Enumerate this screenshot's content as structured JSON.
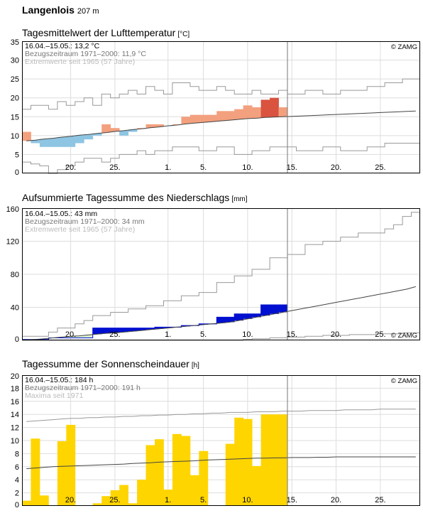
{
  "header": {
    "station": "Langenlois",
    "elevation": "207 m"
  },
  "credit": "© ZAMG",
  "x_ticks": [
    {
      "day": 5,
      "label": "20."
    },
    {
      "day": 10,
      "label": "25."
    },
    {
      "day": 16,
      "label": "1."
    },
    {
      "day": 20,
      "label": "5."
    },
    {
      "day": 25,
      "label": "10."
    },
    {
      "day": 30,
      "label": "15."
    },
    {
      "day": 35,
      "label": "20."
    },
    {
      "day": 40,
      "label": "25."
    }
  ],
  "chart_data": [
    {
      "type": "bar",
      "title": "Tagesmittelwert der Lufttemperatur",
      "unit": "[°C]",
      "info": [
        "16.04.–15.05.: 13,2 °C",
        "Bezugszeitraum 1971–2000: 11,9 °C",
        "Extremwerte seit 1965 (57 Jahre)"
      ],
      "ylim": [
        0,
        35
      ],
      "yticks": [
        0,
        5,
        10,
        15,
        20,
        25,
        30,
        35
      ],
      "days_total": 45,
      "current_day": 30,
      "values": [
        11,
        8,
        7,
        7,
        7,
        7,
        8,
        9,
        10,
        13,
        12,
        10,
        11,
        12,
        13,
        13,
        12.5,
        13,
        15,
        15.5,
        15.5,
        15.5,
        16.5,
        16.5,
        17,
        18,
        17.5,
        19.5,
        20,
        17.5
      ],
      "normal": [
        8.6,
        8.8,
        9.1,
        9.3,
        9.6,
        9.8,
        10.1,
        10.3,
        10.6,
        10.8,
        11.1,
        11.3,
        11.6,
        11.8,
        12.1,
        12.3,
        12.6,
        12.8,
        13.1,
        13.3,
        13.5,
        13.7,
        13.9,
        14.1,
        14.3,
        14.5,
        14.6,
        14.8,
        14.9,
        15.0,
        15.1,
        15.2,
        15.3,
        15.4,
        15.5,
        15.6,
        15.7,
        15.8,
        15.9,
        16.0,
        16.1,
        16.2,
        16.3,
        16.4,
        16.5
      ],
      "max": [
        17,
        18,
        18,
        17,
        19,
        18,
        19,
        20,
        18,
        21,
        20,
        21,
        22,
        21,
        23,
        22,
        21,
        24,
        24,
        23,
        22,
        22,
        23,
        22,
        21,
        21,
        22,
        21,
        21,
        22,
        21,
        21,
        22,
        22,
        21,
        21,
        22,
        22,
        22,
        23,
        23,
        24,
        24,
        25,
        25
      ],
      "min": [
        3,
        2.5,
        2,
        0,
        1,
        2,
        3,
        4,
        4,
        3,
        4,
        5,
        5,
        6,
        5,
        6,
        6,
        7,
        7,
        7,
        6,
        6,
        7,
        7,
        5,
        5,
        6,
        6,
        7,
        7,
        7,
        6,
        6,
        6,
        7,
        7,
        6,
        6,
        6,
        7,
        7,
        8,
        8,
        8,
        8
      ]
    },
    {
      "type": "area",
      "title": "Aufsummierte Tagessumme des Niederschlags",
      "unit": "[mm]",
      "info": [
        "16.04.–15.05.: 43 mm",
        "Bezugszeitraum 1971–2000: 34 mm",
        "Extremwerte seit 1965 (57 Jahre)"
      ],
      "ylim": [
        0,
        160
      ],
      "yticks": [
        0,
        40,
        80,
        120,
        160
      ],
      "days_total": 45,
      "current_day": 30,
      "values": [
        1,
        1,
        1,
        3,
        3,
        3,
        3,
        3,
        15,
        15,
        15,
        15,
        15,
        15,
        15,
        16,
        16,
        16,
        18,
        18,
        20,
        20,
        28,
        28,
        32,
        32,
        32,
        43,
        43,
        43
      ],
      "normal": [
        0.5,
        1,
        2,
        3,
        4,
        5,
        5.5,
        6.5,
        7.5,
        8.5,
        9,
        10,
        11,
        12,
        13,
        14,
        15,
        16,
        17,
        18,
        19,
        20,
        21,
        22,
        24,
        26,
        28,
        30,
        32,
        34,
        36,
        38,
        40,
        42,
        44,
        46,
        48,
        50,
        52,
        54,
        56,
        58,
        60,
        62,
        65
      ],
      "max": [
        5,
        5,
        5,
        10,
        15,
        15,
        20,
        24,
        30,
        30,
        34,
        34,
        38,
        38,
        42,
        42,
        48,
        48,
        54,
        54,
        58,
        58,
        70,
        70,
        78,
        78,
        86,
        86,
        100,
        100,
        104,
        104,
        116,
        116,
        120,
        120,
        125,
        125,
        130,
        130,
        130,
        135,
        140,
        150,
        155
      ],
      "min": [
        0,
        0,
        0,
        0,
        0,
        0,
        0,
        0,
        0,
        0,
        0,
        0,
        0,
        0,
        0,
        0,
        0,
        0,
        0,
        0,
        0,
        0,
        0,
        0,
        0,
        1,
        2,
        2,
        3,
        3,
        4,
        4,
        5,
        5,
        6,
        6,
        6,
        7,
        7,
        7,
        8,
        8,
        8,
        9,
        9
      ]
    },
    {
      "type": "bar",
      "title": "Tagessumme der Sonnenscheindauer",
      "unit": "[h]",
      "info": [
        "16.04.–15.05.: 184 h",
        "Bezugszeitraum 1971–2000: 191 h",
        "Maxima seit 1971"
      ],
      "ylim": [
        0,
        20
      ],
      "yticks": [
        0,
        2,
        4,
        6,
        8,
        10,
        12,
        14,
        16,
        18,
        20
      ],
      "days_total": 45,
      "current_day": 30,
      "values": [
        0.8,
        10.3,
        1.6,
        0,
        9.9,
        12.4,
        0,
        0,
        0.4,
        1.5,
        2.4,
        3.2,
        0.4,
        4,
        9.3,
        10.2,
        2.5,
        11,
        10.7,
        4.7,
        8.4,
        0,
        0,
        9.5,
        13.5,
        13.3,
        6.1,
        14,
        14,
        14
      ],
      "normal": [
        5.7,
        5.8,
        5.9,
        6.0,
        6.05,
        6.1,
        6.15,
        6.2,
        6.25,
        6.3,
        6.35,
        6.4,
        6.5,
        6.55,
        6.6,
        6.7,
        6.75,
        6.8,
        6.85,
        6.9,
        7.0,
        7.05,
        7.1,
        7.15,
        7.2,
        7.25,
        7.3,
        7.3,
        7.35,
        7.35,
        7.4,
        7.4,
        7.4,
        7.45,
        7.45,
        7.5,
        7.5,
        7.5,
        7.5,
        7.5,
        7.5,
        7.5,
        7.5,
        7.5,
        7.5
      ],
      "max": [
        12.9,
        13.0,
        13.1,
        13.2,
        13.3,
        13.4,
        13.4,
        13.5,
        13.5,
        13.6,
        13.6,
        13.7,
        13.7,
        13.8,
        13.8,
        13.9,
        13.9,
        14.0,
        14.0,
        14.1,
        14.1,
        14.2,
        14.2,
        14.3,
        14.3,
        14.3,
        14.4,
        14.4,
        14.4,
        14.5,
        14.5,
        14.5,
        14.6,
        14.6,
        14.6,
        14.6,
        14.7,
        14.7,
        14.7,
        14.7,
        14.8,
        14.8,
        14.8,
        14.8,
        14.8
      ]
    }
  ]
}
